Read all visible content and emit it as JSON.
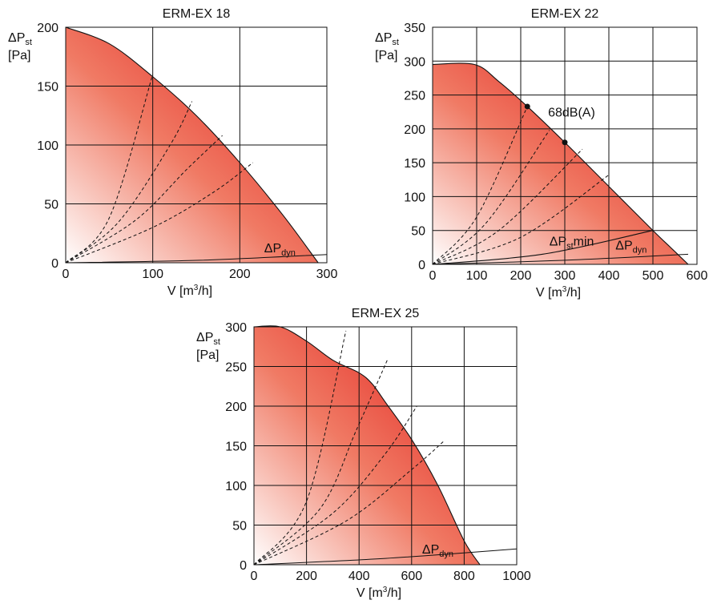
{
  "chart_data": [
    {
      "type": "area",
      "title": "ERM-EX 18",
      "ylabel_main": "ΔP",
      "ylabel_sub": "st",
      "ylabel_unit": "[Pa]",
      "xlabel_main": "V [m",
      "xlabel_sup": "3",
      "xlabel_end": "/h]",
      "xlim": [
        0,
        300
      ],
      "ylim": [
        0,
        200
      ],
      "xticks": [
        0,
        100,
        200,
        300
      ],
      "yticks": [
        0,
        50,
        100,
        150,
        200
      ],
      "grid": true,
      "fan_curve": [
        [
          0,
          200
        ],
        [
          50,
          186
        ],
        [
          100,
          158
        ],
        [
          150,
          125
        ],
        [
          200,
          85
        ],
        [
          250,
          40
        ],
        [
          290,
          0
        ]
      ],
      "dashed_curves": [
        [
          [
            0,
            0
          ],
          [
            50,
            38
          ],
          [
            100,
            160
          ]
        ],
        [
          [
            0,
            0
          ],
          [
            60,
            34
          ],
          [
            120,
            100
          ],
          [
            145,
            137
          ]
        ],
        [
          [
            0,
            0
          ],
          [
            80,
            36
          ],
          [
            140,
            80
          ],
          [
            180,
            108
          ]
        ],
        [
          [
            0,
            0
          ],
          [
            100,
            30
          ],
          [
            170,
            60
          ],
          [
            215,
            85
          ]
        ]
      ],
      "pdyn_curve": [
        [
          0,
          0
        ],
        [
          150,
          2
        ],
        [
          300,
          7
        ]
      ],
      "annotations": [
        {
          "label_main": "ΔP",
          "label_sub": "dyn",
          "x": 228,
          "y": 9
        }
      ]
    },
    {
      "type": "area",
      "title": "ERM-EX 22",
      "ylabel_main": "ΔP",
      "ylabel_sub": "st",
      "ylabel_unit": "[Pa]",
      "xlabel_main": "V [m",
      "xlabel_sup": "3",
      "xlabel_end": "/h]",
      "xlim": [
        0,
        600
      ],
      "ylim": [
        0,
        350
      ],
      "xticks": [
        0,
        100,
        200,
        300,
        400,
        500,
        600
      ],
      "yticks": [
        0,
        50,
        100,
        150,
        200,
        250,
        300,
        350
      ],
      "grid": true,
      "fan_curve": [
        [
          0,
          295
        ],
        [
          95,
          295
        ],
        [
          150,
          270
        ],
        [
          215,
          233
        ],
        [
          300,
          180
        ],
        [
          400,
          115
        ],
        [
          500,
          50
        ],
        [
          540,
          25
        ],
        [
          580,
          0
        ]
      ],
      "dashed_curves": [
        [
          [
            0,
            0
          ],
          [
            100,
            70
          ],
          [
            215,
            233
          ]
        ],
        [
          [
            0,
            0
          ],
          [
            120,
            60
          ],
          [
            265,
            198
          ]
        ],
        [
          [
            0,
            0
          ],
          [
            150,
            50
          ],
          [
            340,
            170
          ]
        ],
        [
          [
            0,
            0
          ],
          [
            200,
            40
          ],
          [
            400,
            132
          ]
        ]
      ],
      "pst_min_curve": [
        [
          0,
          0
        ],
        [
          250,
          15
        ],
        [
          500,
          50
        ]
      ],
      "pdyn_curve": [
        [
          0,
          0
        ],
        [
          300,
          6
        ],
        [
          580,
          15
        ]
      ],
      "points": [
        [
          215,
          233
        ],
        [
          300,
          180
        ]
      ],
      "annotations": [
        {
          "label_main": "68dB(A)",
          "x": 262,
          "y": 218
        },
        {
          "label_main": "ΔP",
          "label_sub": "st",
          "label_end": "min",
          "x": 265,
          "y": 28
        },
        {
          "label_main": "ΔP",
          "label_sub": "dyn",
          "x": 415,
          "y": 22
        }
      ]
    },
    {
      "type": "area",
      "title": "ERM-EX 25",
      "ylabel_main": "ΔP",
      "ylabel_sub": "st",
      "ylabel_unit": "[Pa]",
      "xlabel_main": "V [m",
      "xlabel_sup": "3",
      "xlabel_end": "/h]",
      "xlim": [
        0,
        1000
      ],
      "ylim": [
        0,
        300
      ],
      "xticks": [
        0,
        200,
        400,
        600,
        800,
        1000
      ],
      "yticks": [
        0,
        50,
        100,
        150,
        200,
        250,
        300
      ],
      "grid": true,
      "fan_curve": [
        [
          0,
          300
        ],
        [
          100,
          300
        ],
        [
          200,
          282
        ],
        [
          300,
          258
        ],
        [
          400,
          242
        ],
        [
          450,
          228
        ],
        [
          500,
          205
        ],
        [
          600,
          158
        ],
        [
          700,
          100
        ],
        [
          800,
          30
        ],
        [
          860,
          0
        ]
      ],
      "dashed_curves": [
        [
          [
            0,
            0
          ],
          [
            200,
            80
          ],
          [
            350,
            295
          ]
        ],
        [
          [
            0,
            0
          ],
          [
            250,
            70
          ],
          [
            390,
            170
          ],
          [
            510,
            260
          ]
        ],
        [
          [
            0,
            0
          ],
          [
            300,
            65
          ],
          [
            500,
            140
          ],
          [
            620,
            200
          ]
        ],
        [
          [
            0,
            0
          ],
          [
            350,
            55
          ],
          [
            600,
            120
          ],
          [
            720,
            155
          ]
        ]
      ],
      "pdyn_curve": [
        [
          0,
          0
        ],
        [
          500,
          8
        ],
        [
          1000,
          20
        ]
      ],
      "annotations": [
        {
          "label_main": "ΔP",
          "label_sub": "dyn",
          "x": 640,
          "y": 14
        }
      ]
    }
  ]
}
